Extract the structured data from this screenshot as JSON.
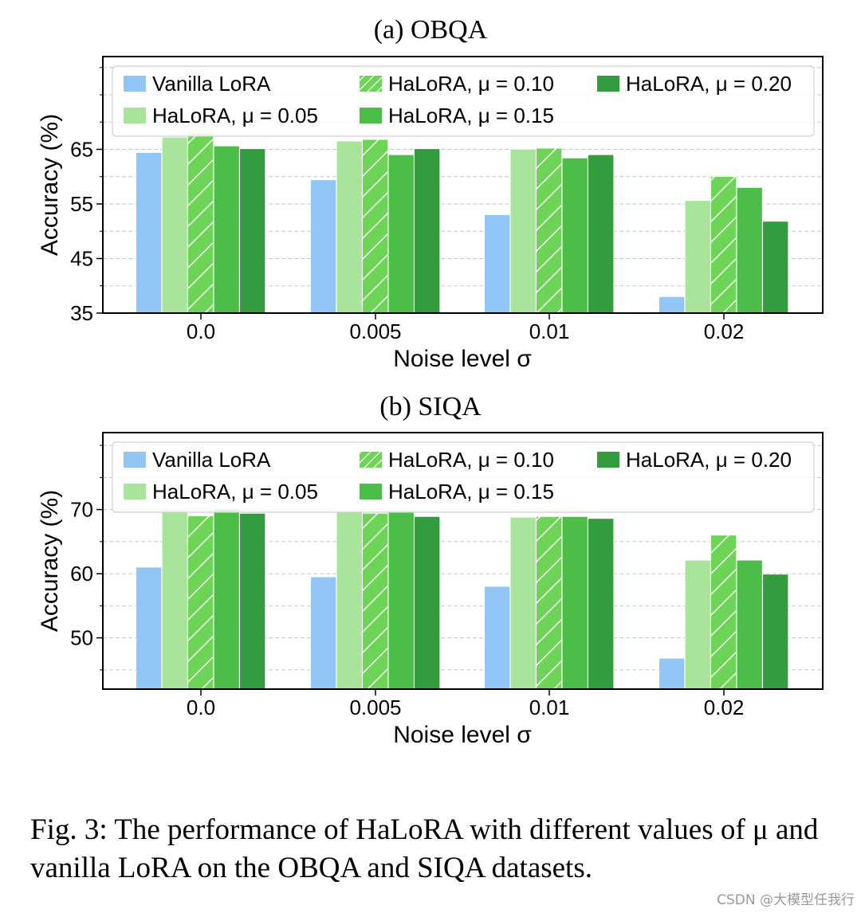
{
  "caption": "Fig. 3: The performance of HaLoRA with different values of μ and vanilla LoRA on the OBQA and SIQA datasets.",
  "watermark": "CSDN @大模型任我行",
  "colors": {
    "vanilla": "#90c5f5",
    "mu005": "#a8e59a",
    "mu010": "#6dd458",
    "mu015": "#4cbe47",
    "mu020": "#339c3e"
  },
  "chart_data": [
    {
      "type": "bar",
      "title": "(a) OBQA",
      "xlabel": "Noise level σ",
      "ylabel": "Accuracy (%)",
      "categories": [
        "0.0",
        "0.005",
        "0.01",
        "0.02"
      ],
      "ylim": [
        35,
        82
      ],
      "yticks": [
        35,
        45,
        55,
        65
      ],
      "grid": true,
      "legend_position": "top",
      "series": [
        {
          "name": "Vanilla LoRA",
          "values": [
            64.4,
            59.4,
            53.0,
            38.0
          ],
          "color_key": "vanilla",
          "hatch": false
        },
        {
          "name": "HaLoRA, μ = 0.05",
          "values": [
            67.2,
            66.5,
            65.0,
            55.6
          ],
          "color_key": "mu005",
          "hatch": false
        },
        {
          "name": "HaLoRA, μ = 0.10",
          "values": [
            68.0,
            66.8,
            65.2,
            60.0
          ],
          "color_key": "mu010",
          "hatch": true
        },
        {
          "name": "HaLoRA, μ = 0.15",
          "values": [
            65.6,
            64.0,
            63.4,
            58.0
          ],
          "color_key": "mu015",
          "hatch": false
        },
        {
          "name": "HaLoRA, μ = 0.20",
          "values": [
            65.1,
            65.1,
            64.0,
            51.8
          ],
          "color_key": "mu020",
          "hatch": false
        }
      ]
    },
    {
      "type": "bar",
      "title": "(b) SIQA",
      "xlabel": "Noise level σ",
      "ylabel": "Accuracy (%)",
      "categories": [
        "0.0",
        "0.005",
        "0.01",
        "0.02"
      ],
      "ylim": [
        42,
        82
      ],
      "yticks": [
        50,
        60,
        70
      ],
      "grid": true,
      "legend_position": "top",
      "series": [
        {
          "name": "Vanilla LoRA",
          "values": [
            61.0,
            59.5,
            58.0,
            46.8
          ],
          "color_key": "vanilla",
          "hatch": false
        },
        {
          "name": "HaLoRA, μ = 0.05",
          "values": [
            70.1,
            69.8,
            68.8,
            62.1
          ],
          "color_key": "mu005",
          "hatch": false
        },
        {
          "name": "HaLoRA, μ = 0.10",
          "values": [
            69.0,
            69.4,
            68.9,
            66.0
          ],
          "color_key": "mu010",
          "hatch": true
        },
        {
          "name": "HaLoRA, μ = 0.15",
          "values": [
            70.1,
            69.8,
            68.9,
            62.1
          ],
          "color_key": "mu015",
          "hatch": false
        },
        {
          "name": "HaLoRA, μ = 0.20",
          "values": [
            69.4,
            68.9,
            68.6,
            59.9
          ],
          "color_key": "mu020",
          "hatch": false
        }
      ]
    }
  ]
}
